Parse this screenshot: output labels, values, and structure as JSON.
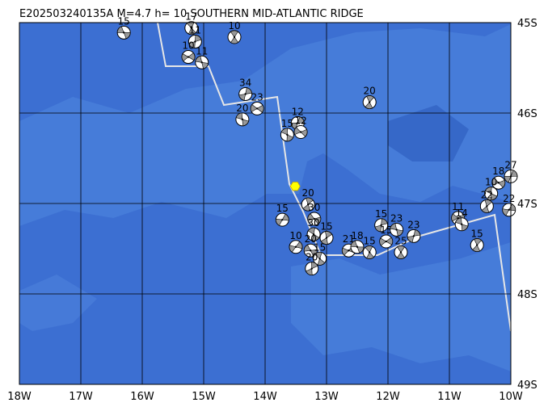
{
  "map": {
    "title": "E202503240135A M=4.7 h= 10 SOUTHERN MID-ATLANTIC RIDGE",
    "lon_range": [
      -18,
      -10
    ],
    "lat_range": [
      -45,
      -49
    ],
    "lon_ticks": [
      {
        "value": -18,
        "label": "18W"
      },
      {
        "value": -17,
        "label": "17W"
      },
      {
        "value": -16,
        "label": "16W"
      },
      {
        "value": -15,
        "label": "15W"
      },
      {
        "value": -14,
        "label": "14W"
      },
      {
        "value": -13,
        "label": "13W"
      },
      {
        "value": -12,
        "label": "12W"
      },
      {
        "value": -11,
        "label": "11W"
      },
      {
        "value": -10,
        "label": "10W"
      }
    ],
    "lat_ticks": [
      {
        "value": -45,
        "label": "45S"
      },
      {
        "value": -46,
        "label": "46S"
      },
      {
        "value": -47,
        "label": "47S"
      },
      {
        "value": -48,
        "label": "48S"
      },
      {
        "value": -49,
        "label": "49S"
      }
    ],
    "epicenter": {
      "lon": -13.51,
      "lat": -46.81
    },
    "events": [
      {
        "depth": 15,
        "lon": -16.3,
        "lat": -45.11
      },
      {
        "depth": 17,
        "lon": -15.2,
        "lat": -45.06
      },
      {
        "depth": 11,
        "lon": -15.14,
        "lat": -45.21
      },
      {
        "depth": 10,
        "lon": -15.25,
        "lat": -45.38
      },
      {
        "depth": 11,
        "lon": -15.03,
        "lat": -45.44
      },
      {
        "depth": 10,
        "lon": -14.5,
        "lat": -45.16
      },
      {
        "depth": 34,
        "lon": -14.32,
        "lat": -45.79
      },
      {
        "depth": 23,
        "lon": -14.13,
        "lat": -45.95
      },
      {
        "depth": 20,
        "lon": -14.37,
        "lat": -46.07
      },
      {
        "depth": 20,
        "lon": -12.3,
        "lat": -45.88
      },
      {
        "depth": 12,
        "lon": -13.47,
        "lat": -46.11
      },
      {
        "depth": 12,
        "lon": -13.42,
        "lat": -46.21
      },
      {
        "depth": 15,
        "lon": -13.64,
        "lat": -46.24
      },
      {
        "depth": 20,
        "lon": -13.3,
        "lat": -47.01
      },
      {
        "depth": 15,
        "lon": -13.72,
        "lat": -47.18
      },
      {
        "depth": 30,
        "lon": -13.2,
        "lat": -47.17
      },
      {
        "depth": 30,
        "lon": -13.21,
        "lat": -47.34
      },
      {
        "depth": 15,
        "lon": -13.0,
        "lat": -47.38
      },
      {
        "depth": 10,
        "lon": -13.5,
        "lat": -47.48
      },
      {
        "depth": 20,
        "lon": -13.26,
        "lat": -47.52
      },
      {
        "depth": 15,
        "lon": -13.11,
        "lat": -47.61
      },
      {
        "depth": 20,
        "lon": -13.24,
        "lat": -47.72
      },
      {
        "depth": 21,
        "lon": -12.64,
        "lat": -47.52
      },
      {
        "depth": 18,
        "lon": -12.5,
        "lat": -47.48
      },
      {
        "depth": 15,
        "lon": -12.3,
        "lat": -47.54
      },
      {
        "depth": 15,
        "lon": -12.11,
        "lat": -47.24
      },
      {
        "depth": 15,
        "lon": -12.03,
        "lat": -47.42
      },
      {
        "depth": 23,
        "lon": -11.86,
        "lat": -47.29
      },
      {
        "depth": 25,
        "lon": -11.79,
        "lat": -47.54
      },
      {
        "depth": 23,
        "lon": -11.58,
        "lat": -47.36
      },
      {
        "depth": 11,
        "lon": -10.86,
        "lat": -47.16
      },
      {
        "depth": 14,
        "lon": -10.8,
        "lat": -47.23
      },
      {
        "depth": 15,
        "lon": -10.55,
        "lat": -47.46
      },
      {
        "depth": 27,
        "lon": -10.0,
        "lat": -46.7
      },
      {
        "depth": 18,
        "lon": -10.2,
        "lat": -46.77
      },
      {
        "depth": 10,
        "lon": -10.32,
        "lat": -46.89
      },
      {
        "depth": 22,
        "lon": -10.39,
        "lat": -47.03
      },
      {
        "depth": 22,
        "lon": -10.03,
        "lat": -47.07
      }
    ]
  }
}
